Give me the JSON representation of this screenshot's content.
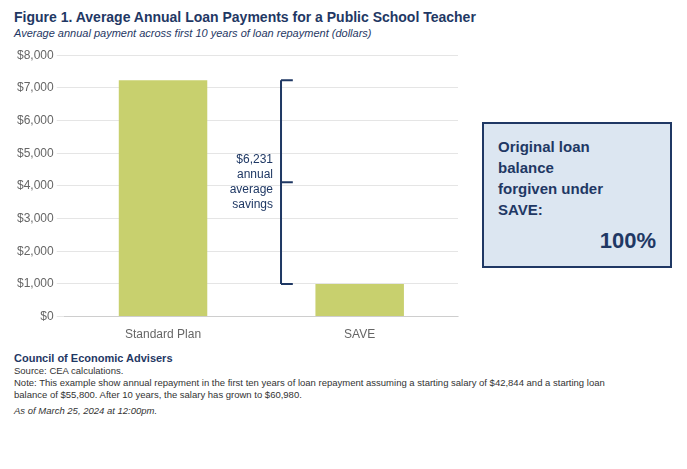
{
  "chart_data": {
    "type": "bar",
    "title": "Figure 1. Average Annual Loan Payments for a Public School Teacher",
    "subtitle": "Average annual payment across first 10 years of loan repayment (dollars)",
    "categories": [
      "Standard Plan",
      "SAVE"
    ],
    "values": [
      7231,
      1000
    ],
    "color": "#c8d06e",
    "ylim": [
      0,
      8000
    ],
    "yticks": [
      {
        "value": 0,
        "label": "$0"
      },
      {
        "value": 1000,
        "label": "$1,000"
      },
      {
        "value": 2000,
        "label": "$2,000"
      },
      {
        "value": 3000,
        "label": "$3,000"
      },
      {
        "value": 4000,
        "label": "$4,000"
      },
      {
        "value": 5000,
        "label": "$5,000"
      },
      {
        "value": 6000,
        "label": "$6,000"
      },
      {
        "value": 7000,
        "label": "$7,000"
      },
      {
        "value": 8000,
        "label": "$8,000"
      }
    ],
    "grid": true,
    "annotations": [
      "$6,231\nannual\naverage\nsavings",
      "Original loan\nbalance\nforgiven under\nSAVE:",
      "100%"
    ],
    "footer": [
      "Council of Economic Advisers",
      "Source: CEA calculations.",
      "Note: This example show annual repayment in the first ten years of loan repayment assuming a starting salary of $42,844 and a starting loan\nbalance of $55,800. After 10 years, the salary has grown to $60,980.",
      "As of March 25, 2024 at 12:00pm."
    ]
  }
}
